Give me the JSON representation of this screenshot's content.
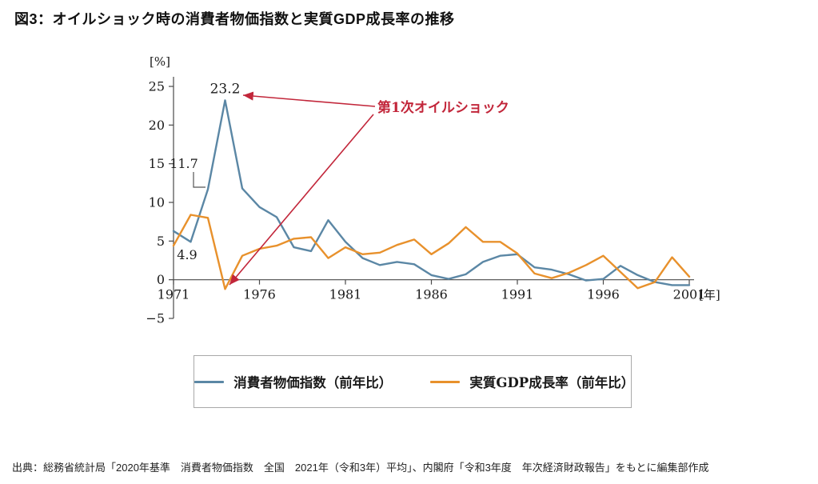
{
  "figure_title": "図3：オイルショック時の消費者物価指数と実質GDP成長率の推移",
  "source_note": "出典：総務省統計局「2020年基準　消費者物価指数　全国　2021年（令和3年）平均」、内閣府「令和3年度　年次経済財政報告」をもとに編集部作成",
  "colors": {
    "cpi": "#5b87a5",
    "gdp": "#e8912c",
    "annotation_red": "#c2263a",
    "axis": "#4a4a4a",
    "text": "#1a1a1a"
  },
  "legend": {
    "items": [
      {
        "label": "消費者物価指数（前年比）"
      },
      {
        "label": "実質GDP成長率（前年比）"
      }
    ]
  },
  "chart_data": {
    "type": "line",
    "title": "図3：オイルショック時の消費者物価指数と実質GDP成長率の推移",
    "ylabel_unit": "[%]",
    "xlabel_unit": "[年]",
    "ylim": [
      -5,
      25
    ],
    "yticks": [
      25,
      20,
      15,
      10,
      5,
      0,
      -5
    ],
    "xticks": [
      1971,
      1976,
      1981,
      1986,
      1991,
      1996,
      2001
    ],
    "grid": false,
    "legend_position": "bottom-box",
    "x": [
      1971,
      1972,
      1973,
      1974,
      1975,
      1976,
      1977,
      1978,
      1979,
      1980,
      1981,
      1982,
      1983,
      1984,
      1985,
      1986,
      1987,
      1988,
      1989,
      1990,
      1991,
      1992,
      1993,
      1994,
      1995,
      1996,
      1997,
      1998,
      1999,
      2000,
      2001
    ],
    "series": [
      {
        "name": "消費者物価指数（前年比）",
        "color_key": "cpi",
        "values": [
          6.3,
          4.9,
          11.7,
          23.2,
          11.8,
          9.4,
          8.1,
          4.2,
          3.7,
          7.7,
          4.9,
          2.8,
          1.9,
          2.3,
          2.0,
          0.6,
          0.1,
          0.7,
          2.3,
          3.1,
          3.3,
          1.6,
          1.3,
          0.7,
          -0.1,
          0.1,
          1.8,
          0.6,
          -0.3,
          -0.7,
          -0.7
        ]
      },
      {
        "name": "実質GDP成長率（前年比）",
        "color_key": "gdp",
        "values": [
          4.4,
          8.4,
          8.0,
          -1.2,
          3.1,
          4.0,
          4.4,
          5.3,
          5.5,
          2.8,
          4.2,
          3.3,
          3.5,
          4.5,
          5.2,
          3.3,
          4.7,
          6.8,
          4.9,
          4.9,
          3.4,
          0.8,
          0.2,
          0.9,
          1.9,
          3.1,
          1.0,
          -1.1,
          -0.3,
          2.9,
          0.4
        ]
      }
    ],
    "annotations": {
      "peak_value_label": "23.2",
      "label_1973": "11.7",
      "label_1972": "4.9",
      "oil_shock_label": "第1次オイルショック"
    }
  }
}
